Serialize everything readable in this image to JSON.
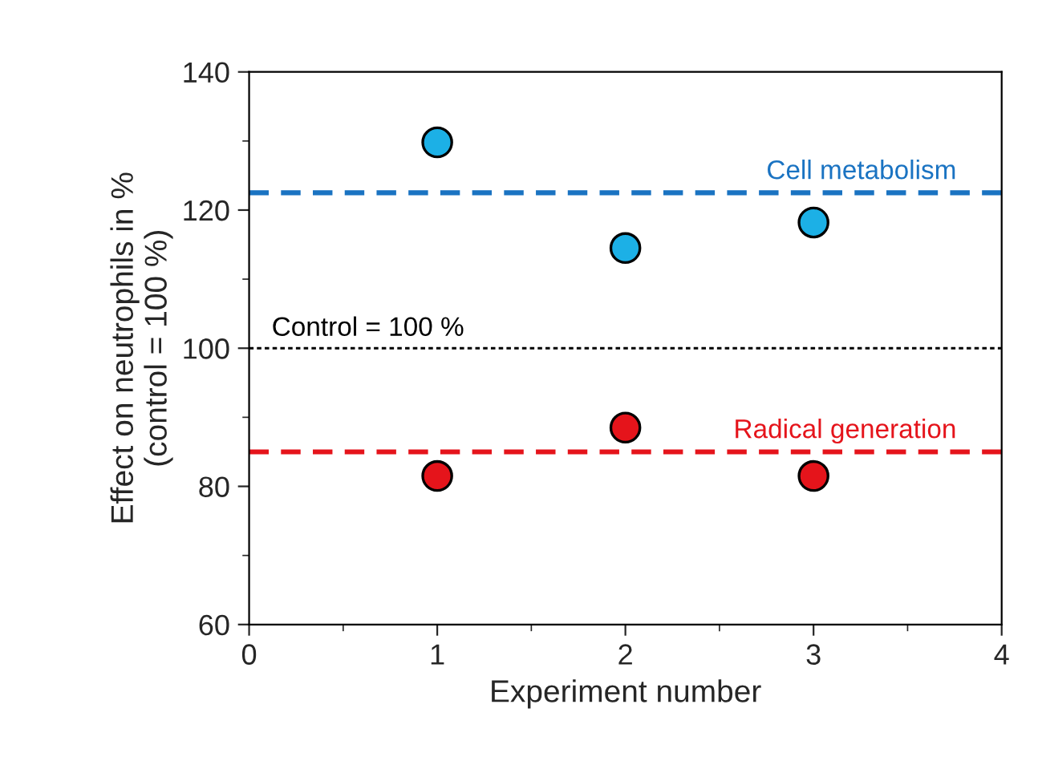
{
  "chart_data": {
    "type": "scatter",
    "xlabel": "Experiment number",
    "ylabel": "Effect on neutrophils in %\n(control = 100 %)",
    "x": [
      1,
      2,
      3
    ],
    "series": [
      {
        "color": "#1cb0e6",
        "values": [
          129.8,
          114.5,
          118.2
        ]
      },
      {
        "color": "#e5141b",
        "values": [
          81.5,
          88.5,
          81.5
        ]
      }
    ],
    "xlim": [
      0,
      4
    ],
    "xticks": [
      0,
      1,
      2,
      3,
      4
    ],
    "ylim": [
      60,
      140
    ],
    "yticks": [
      60,
      80,
      100,
      120,
      140
    ],
    "marker": "circle",
    "grid": false,
    "ref_lines": [
      {
        "axis": "y",
        "value": 122.5,
        "label": "Cell metabolism",
        "color": "#1a73c2",
        "line_style": "dashed"
      },
      {
        "axis": "y",
        "value": 100,
        "label": "Control = 100 %",
        "color": "#000000",
        "line_style": "dotted"
      },
      {
        "axis": "y",
        "value": 85,
        "label": "Radical generation",
        "color": "#e5141b",
        "line_style": "dashed"
      }
    ]
  }
}
